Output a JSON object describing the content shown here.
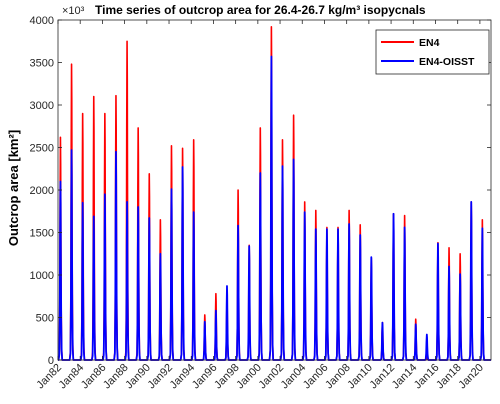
{
  "chart_data": {
    "type": "line",
    "title": "Time series of outcrop area for 26.4-26.7 kg/m³ isopycnals",
    "multiplier_label": "×10³",
    "xlabel": "",
    "ylabel": "Outcrop area [km²]",
    "xlim": [
      "1982-01",
      "2020-12"
    ],
    "ylim": [
      0,
      4000
    ],
    "yticks": [
      0,
      500,
      1000,
      1500,
      2000,
      2500,
      3000,
      3500,
      4000
    ],
    "xticks": [
      "Jan82",
      "Jan84",
      "Jan86",
      "Jan88",
      "Jan90",
      "Jan92",
      "Jan94",
      "Jan96",
      "Jan98",
      "Jan00",
      "Jan02",
      "Jan04",
      "Jan06",
      "Jan08",
      "Jan10",
      "Jan12",
      "Jan14",
      "Jan16",
      "Jan18",
      "Jan20"
    ],
    "grid": false,
    "legend_position": "top-right",
    "x_unit": "year, Jan 1 of each labelled year; seasonal peak once per year",
    "years": [
      1982,
      1983,
      1984,
      1985,
      1986,
      1987,
      1988,
      1989,
      1990,
      1991,
      1992,
      1993,
      1994,
      1995,
      1996,
      1997,
      1998,
      1999,
      2000,
      2001,
      2002,
      2003,
      2004,
      2005,
      2006,
      2007,
      2008,
      2009,
      2010,
      2011,
      2012,
      2013,
      2014,
      2015,
      2016,
      2017,
      2018,
      2019,
      2020
    ],
    "series": [
      {
        "name": "EN4",
        "color": "#ff0000",
        "peaks": [
          2620,
          3480,
          2900,
          3100,
          2900,
          3110,
          3750,
          2730,
          2190,
          1650,
          2520,
          2490,
          2590,
          530,
          780,
          700,
          2000,
          1350,
          2730,
          3920,
          2590,
          2880,
          1860,
          1760,
          1560,
          1560,
          1760,
          1590,
          1200,
          440,
          1720,
          1700,
          480,
          60,
          1380,
          1320,
          1250,
          1860,
          1650
        ]
      },
      {
        "name": "EN4-OISST",
        "color": "#0000ff",
        "peaks": [
          2100,
          2470,
          1850,
          1690,
          1950,
          2450,
          1860,
          1800,
          1670,
          1250,
          2010,
          2270,
          1740,
          450,
          580,
          870,
          1580,
          1340,
          2200,
          3570,
          2280,
          2360,
          1740,
          1540,
          1540,
          1540,
          1600,
          1470,
          1210,
          440,
          1720,
          1560,
          420,
          300,
          1370,
          1100,
          1010,
          1860,
          1550
        ]
      }
    ]
  }
}
